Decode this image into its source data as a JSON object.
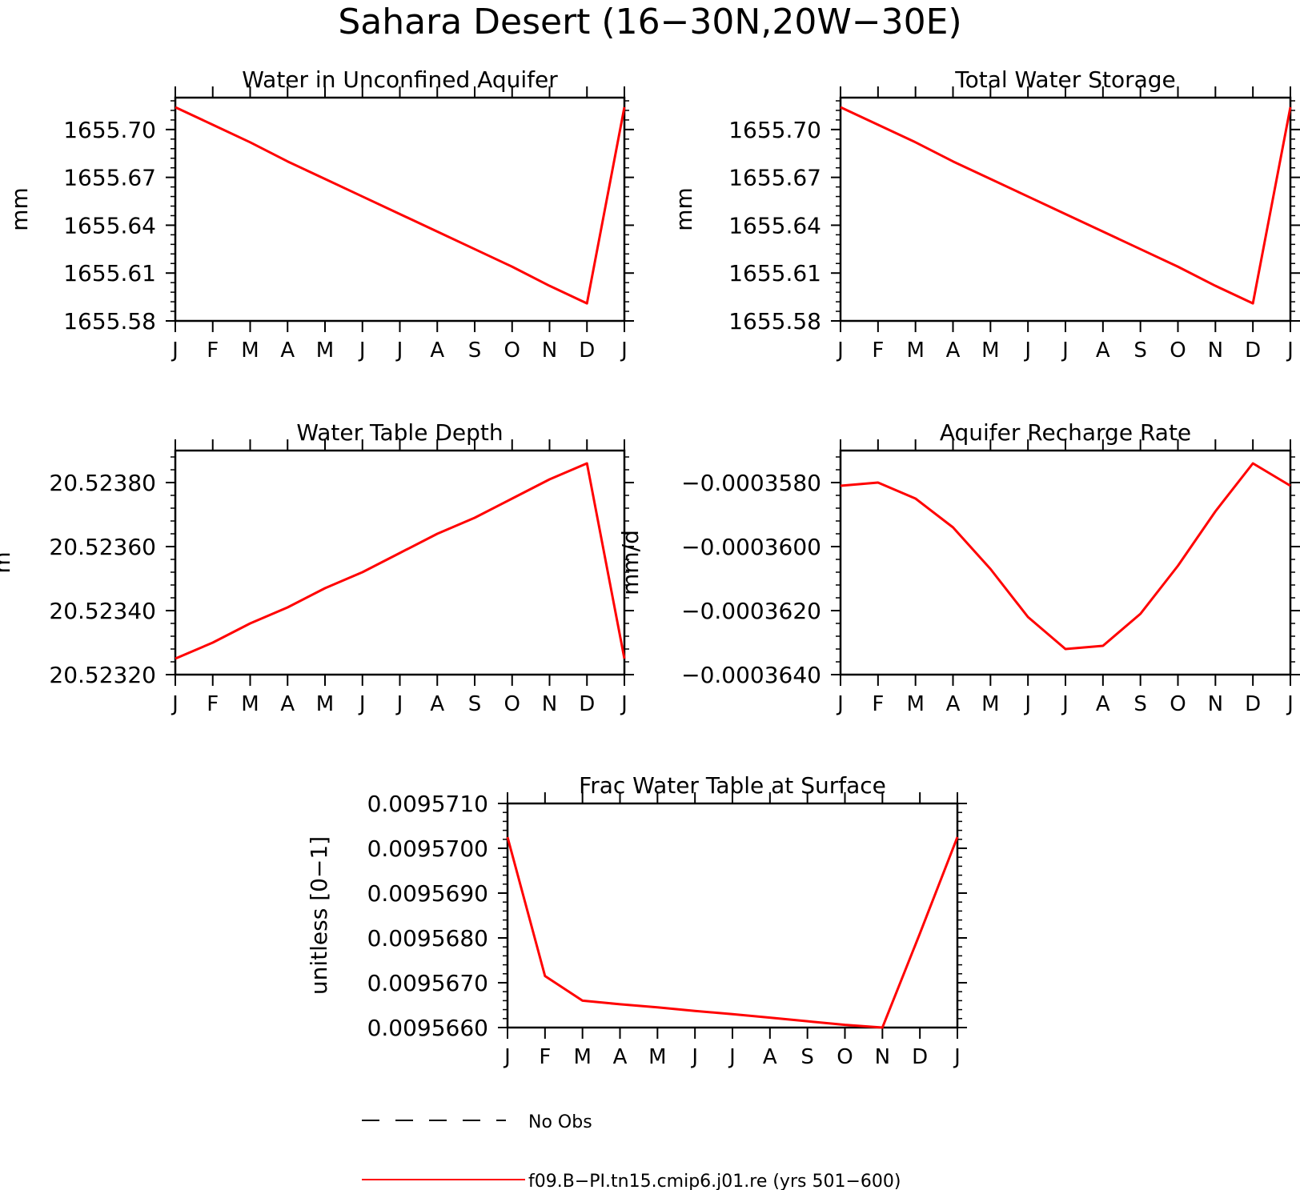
{
  "page_title": "Sahara Desert (16−30N,20W−30E)",
  "months": [
    "J",
    "F",
    "M",
    "A",
    "M",
    "J",
    "J",
    "A",
    "S",
    "O",
    "N",
    "D",
    "J"
  ],
  "legend": {
    "entries": [
      {
        "label": "No Obs",
        "style": "dashed",
        "color": "#000000"
      },
      {
        "label": "f09.B−PI.tn15.cmip6.j01.re (yrs 501−600)",
        "style": "solid",
        "color": "#ff0000"
      }
    ]
  },
  "chart_data": [
    {
      "type": "line",
      "title": "Water in Unconfined Aquifer",
      "ylabel": "mm",
      "ylim": [
        1655.58,
        1655.72
      ],
      "yticks": [
        1655.58,
        1655.61,
        1655.64,
        1655.67,
        1655.7
      ],
      "ytick_labels": [
        "1655.58",
        "1655.61",
        "1655.64",
        "1655.67",
        "1655.70"
      ],
      "categories": [
        "J",
        "F",
        "M",
        "A",
        "M",
        "J",
        "J",
        "A",
        "S",
        "O",
        "N",
        "D",
        "J"
      ],
      "series": [
        {
          "color": "#ff0000",
          "values": [
            1655.714,
            1655.703,
            1655.692,
            1655.68,
            1655.669,
            1655.658,
            1655.647,
            1655.636,
            1655.625,
            1655.614,
            1655.602,
            1655.591,
            1655.714
          ]
        }
      ]
    },
    {
      "type": "line",
      "title": "Total Water Storage",
      "ylabel": "mm",
      "ylim": [
        1655.58,
        1655.72
      ],
      "yticks": [
        1655.58,
        1655.61,
        1655.64,
        1655.67,
        1655.7
      ],
      "ytick_labels": [
        "1655.58",
        "1655.61",
        "1655.64",
        "1655.67",
        "1655.70"
      ],
      "categories": [
        "J",
        "F",
        "M",
        "A",
        "M",
        "J",
        "J",
        "A",
        "S",
        "O",
        "N",
        "D",
        "J"
      ],
      "series": [
        {
          "color": "#ff0000",
          "values": [
            1655.714,
            1655.703,
            1655.692,
            1655.68,
            1655.669,
            1655.658,
            1655.647,
            1655.636,
            1655.625,
            1655.614,
            1655.602,
            1655.591,
            1655.714
          ]
        }
      ]
    },
    {
      "type": "line",
      "title": "Water Table Depth",
      "ylabel": "m",
      "ylim": [
        20.5232,
        20.5239
      ],
      "yticks": [
        20.5232,
        20.5234,
        20.5236,
        20.5238
      ],
      "ytick_labels": [
        "20.52320",
        "20.52340",
        "20.52360",
        "20.52380"
      ],
      "categories": [
        "J",
        "F",
        "M",
        "A",
        "M",
        "J",
        "J",
        "A",
        "S",
        "O",
        "N",
        "D",
        "J"
      ],
      "series": [
        {
          "color": "#ff0000",
          "values": [
            20.52325,
            20.5233,
            20.52336,
            20.52341,
            20.52347,
            20.52352,
            20.52358,
            20.52364,
            20.52369,
            20.52375,
            20.52381,
            20.52386,
            20.52325
          ]
        }
      ]
    },
    {
      "type": "line",
      "title": "Aquifer Recharge Rate",
      "ylabel": "mm/d",
      "ylim": [
        -0.000364,
        -0.000357
      ],
      "yticks": [
        -0.000364,
        -0.000362,
        -0.00036,
        -0.000358
      ],
      "ytick_labels": [
        "−0.0003640",
        "−0.0003620",
        "−0.0003600",
        "−0.0003580"
      ],
      "categories": [
        "J",
        "F",
        "M",
        "A",
        "M",
        "J",
        "J",
        "A",
        "S",
        "O",
        "N",
        "D",
        "J"
      ],
      "series": [
        {
          "color": "#ff0000",
          "values": [
            -0.0003581,
            -0.000358,
            -0.0003585,
            -0.0003594,
            -0.0003607,
            -0.0003622,
            -0.0003632,
            -0.0003631,
            -0.0003621,
            -0.0003606,
            -0.0003589,
            -0.0003574,
            -0.0003581
          ]
        }
      ]
    },
    {
      "type": "line",
      "title": "Frac Water Table at Surface",
      "ylabel": "unitless [0−1]",
      "ylim": [
        0.009566,
        0.009571
      ],
      "yticks": [
        0.009566,
        0.009567,
        0.009568,
        0.009569,
        0.00957,
        0.009571
      ],
      "ytick_labels": [
        "0.0095660",
        "0.0095670",
        "0.0095680",
        "0.0095690",
        "0.0095700",
        "0.0095710"
      ],
      "categories": [
        "J",
        "F",
        "M",
        "A",
        "M",
        "J",
        "J",
        "A",
        "S",
        "O",
        "N",
        "D",
        "J"
      ],
      "series": [
        {
          "color": "#ff0000",
          "values": [
            0.00957025,
            0.00956715,
            0.0095666,
            0.00956652,
            0.00956645,
            0.00956637,
            0.0095663,
            0.00956622,
            0.00956614,
            0.00956606,
            0.009566,
            0.0095681,
            0.00957025
          ]
        }
      ]
    }
  ]
}
